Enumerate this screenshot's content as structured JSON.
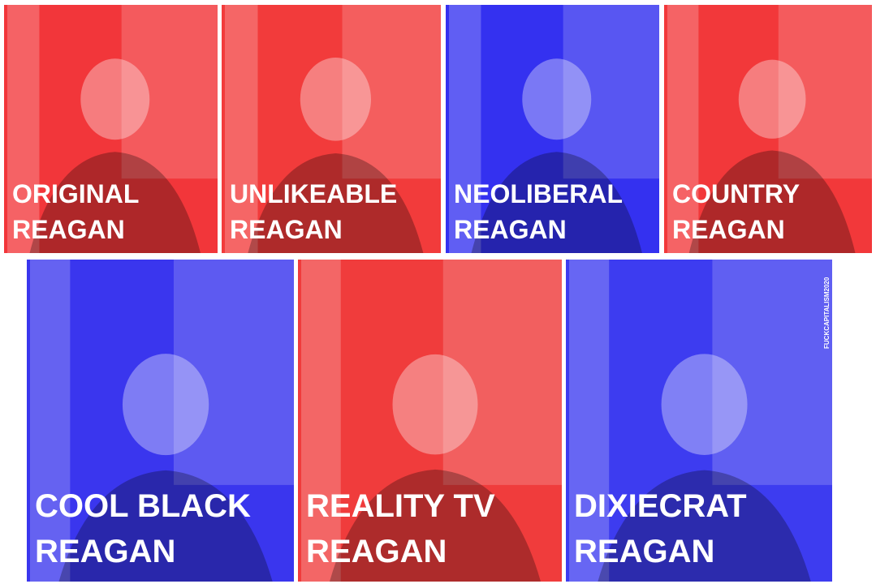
{
  "panels": [
    {
      "lines": [
        "ORIGINAL",
        "REAGAN"
      ],
      "color": "#f2363a"
    },
    {
      "lines": [
        "UNLIKEABLE",
        "REAGAN"
      ],
      "color": "#f23b3b"
    },
    {
      "lines": [
        "NEOLIBERAL",
        "REAGAN"
      ],
      "color": "#3431f0"
    },
    {
      "lines": [
        "COUNTRY",
        "REAGAN"
      ],
      "color": "#f2383a"
    },
    {
      "lines": [
        "COOL BLACK",
        "REAGAN"
      ],
      "color": "#3a36ee"
    },
    {
      "lines": [
        "REALITY TV",
        "REAGAN"
      ],
      "color": "#f03c3c"
    },
    {
      "lines": [
        "DIXIECRAT",
        "REAGAN"
      ],
      "color": "#3d3cf0"
    }
  ],
  "watermark": "FUCKCAPITALISM2020"
}
